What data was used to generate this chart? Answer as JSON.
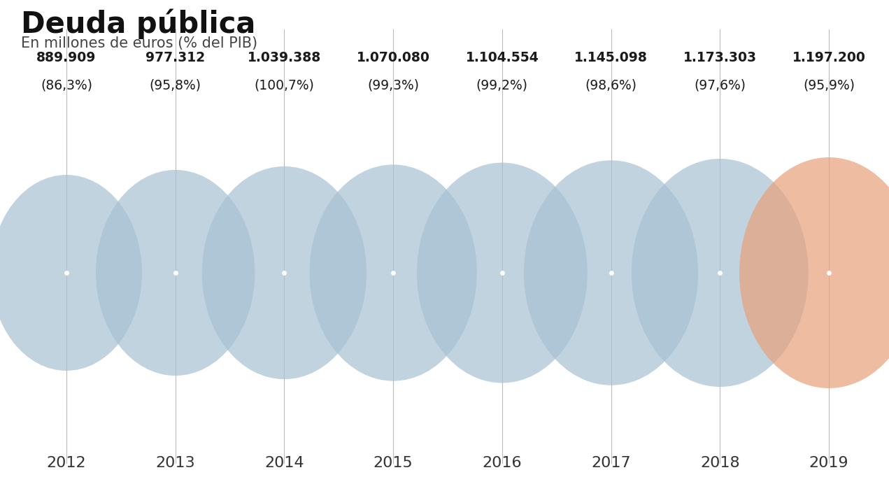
{
  "title": "Deuda pública",
  "subtitle": "En millones de euros (% del PIB)",
  "years": [
    2012,
    2013,
    2014,
    2015,
    2016,
    2017,
    2018,
    2019
  ],
  "values": [
    "889.909",
    "977.312",
    "1.039.388",
    "1.070.080",
    "1.104.554",
    "1.145.098",
    "1.173.303",
    "1.197.200"
  ],
  "percentages": [
    "(86,3%)",
    "(95,8%)",
    "(100,7%)",
    "(99,3%)",
    "(99,2%)",
    "(98,6%)",
    "(97,6%)",
    "(95,9%)"
  ],
  "numeric_values": [
    889909,
    977312,
    1039388,
    1070080,
    1104554,
    1145098,
    1173303,
    1197200
  ],
  "circle_color_blue": "#a8c1d4",
  "circle_color_orange": "#e8a07a",
  "circle_alpha": 0.7,
  "background_color": "#ffffff",
  "title_fontsize": 30,
  "subtitle_fontsize": 15,
  "label_fontsize": 13.5,
  "year_fontsize": 16,
  "line_color": "#bbbbbb",
  "dot_color": "#ffffff",
  "text_color_value": "#1a1a1a",
  "text_color_year": "#333333"
}
